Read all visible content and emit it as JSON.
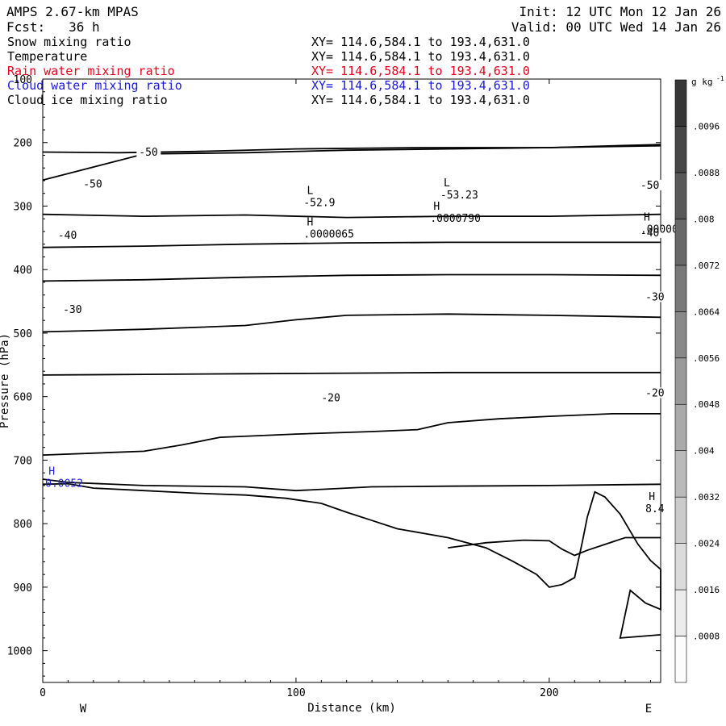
{
  "header": {
    "line1_left": "AMPS 2.67-km MPAS",
    "line1_right": "Init: 12 UTC Mon 12 Jan 26",
    "line2_left": "Fcst:   36 h",
    "line2_right": "Valid: 00 UTC Wed 14 Jan 26",
    "fields": [
      {
        "name": "Snow mixing ratio",
        "xy": "XY= 114.6,584.1 to 193.4,631.0",
        "color": "#000000"
      },
      {
        "name": "Temperature",
        "xy": "XY= 114.6,584.1 to 193.4,631.0",
        "color": "#000000"
      },
      {
        "name": "Rain water mixing ratio",
        "xy": "XY= 114.6,584.1 to 193.4,631.0",
        "color": "#e8001c"
      },
      {
        "name": "Cloud water mixing ratio",
        "xy": "XY= 114.6,584.1 to 193.4,631.0",
        "color": "#1a1adc"
      },
      {
        "name": "Cloud ice mixing ratio",
        "xy": "XY= 114.6,584.1 to 193.4,631.0",
        "color": "#000000"
      }
    ]
  },
  "chart_data": {
    "type": "cross-section contour",
    "xlabel": "Distance (km)",
    "ylabel": "Pressure (hPa)",
    "xlim": [
      0,
      244
    ],
    "ylim": [
      1050,
      100
    ],
    "x_ticks": [
      0,
      100,
      200
    ],
    "y_ticks": [
      100,
      200,
      300,
      400,
      500,
      600,
      700,
      800,
      900,
      1000
    ],
    "left_end_label": "W",
    "right_end_label": "E",
    "colorbar": {
      "unit": "g kg",
      "unit_exp": "-1",
      "levels": [
        ".0008",
        ".0016",
        ".0024",
        ".0032",
        ".004",
        ".0048",
        ".0056",
        ".0064",
        ".0072",
        ".008",
        ".0088",
        ".0096"
      ]
    },
    "temperature_isotherms": [
      {
        "points": [
          [
            0,
            215
          ],
          [
            30,
            216
          ],
          [
            60,
            214
          ],
          [
            100,
            210
          ],
          [
            150,
            208
          ],
          [
            200,
            208
          ],
          [
            244,
            205
          ]
        ]
      },
      {
        "label": "-50",
        "label_at": [
          38,
          218
        ],
        "points": [
          [
            0,
            259
          ],
          [
            40,
            218
          ],
          [
            80,
            216
          ],
          [
            120,
            212
          ],
          [
            160,
            210
          ],
          [
            200,
            208
          ],
          [
            244,
            203
          ]
        ]
      },
      {
        "label": "-50",
        "label_at": [
          16,
          268
        ],
        "points": [
          [
            0,
            313
          ],
          [
            40,
            316
          ],
          [
            80,
            314
          ],
          [
            120,
            318
          ],
          [
            160,
            316
          ],
          [
            200,
            316
          ],
          [
            244,
            313
          ]
        ]
      },
      {
        "label": "-50",
        "label_at": [
          236,
          270
        ],
        "points": []
      },
      {
        "points": [
          [
            0,
            365
          ],
          [
            40,
            363
          ],
          [
            80,
            360
          ],
          [
            120,
            358
          ],
          [
            160,
            357
          ],
          [
            200,
            357
          ],
          [
            244,
            357
          ]
        ]
      },
      {
        "label": "-40",
        "label_at": [
          6,
          349
        ],
        "points": [
          [
            0,
            418
          ],
          [
            40,
            416
          ],
          [
            80,
            412
          ],
          [
            120,
            409
          ],
          [
            160,
            408
          ],
          [
            200,
            408
          ],
          [
            244,
            409
          ]
        ]
      },
      {
        "label": "-40",
        "label_at": [
          236,
          345
        ],
        "points": []
      },
      {
        "points": [
          [
            0,
            498
          ],
          [
            40,
            494
          ],
          [
            80,
            488
          ],
          [
            100,
            479
          ],
          [
            120,
            472
          ],
          [
            160,
            470
          ],
          [
            200,
            472
          ],
          [
            244,
            475
          ]
        ]
      },
      {
        "label": "-30",
        "label_at": [
          8,
          466
        ],
        "points": [
          [
            0,
            566
          ],
          [
            40,
            565
          ],
          [
            80,
            564
          ],
          [
            120,
            563
          ],
          [
            160,
            562
          ],
          [
            200,
            562
          ],
          [
            244,
            562
          ]
        ]
      },
      {
        "label": "-30",
        "label_at": [
          238,
          446
        ],
        "points": []
      },
      {
        "points": [
          [
            0,
            692
          ],
          [
            40,
            686
          ],
          [
            55,
            676
          ],
          [
            70,
            664
          ],
          [
            100,
            659
          ],
          [
            130,
            655
          ],
          [
            148,
            652
          ],
          [
            160,
            641
          ],
          [
            180,
            635
          ],
          [
            200,
            631
          ],
          [
            225,
            627
          ],
          [
            244,
            627
          ]
        ]
      },
      {
        "label": "-20",
        "label_at": [
          110,
          605
        ],
        "points": [
          [
            0,
            730
          ],
          [
            10,
            735
          ],
          [
            40,
            740
          ],
          [
            80,
            742
          ],
          [
            100,
            748
          ],
          [
            115,
            745
          ],
          [
            130,
            742
          ],
          [
            160,
            741
          ],
          [
            200,
            740
          ],
          [
            244,
            738
          ]
        ]
      },
      {
        "label": "-20",
        "label_at": [
          238,
          597
        ],
        "points": []
      },
      {
        "points": [
          [
            160,
            838
          ],
          [
            175,
            830
          ],
          [
            190,
            826
          ],
          [
            200,
            827
          ],
          [
            205,
            840
          ],
          [
            210,
            850
          ],
          [
            215,
            842
          ],
          [
            230,
            822
          ],
          [
            244,
            822
          ]
        ]
      }
    ],
    "terrain_outline": {
      "points": [
        [
          0,
          738
        ],
        [
          10,
          737
        ],
        [
          20,
          744
        ],
        [
          40,
          748
        ],
        [
          60,
          752
        ],
        [
          80,
          755
        ],
        [
          96,
          760
        ],
        [
          110,
          768
        ],
        [
          120,
          782
        ],
        [
          130,
          795
        ],
        [
          140,
          808
        ],
        [
          160,
          822
        ],
        [
          175,
          838
        ],
        [
          185,
          858
        ],
        [
          195,
          880
        ],
        [
          200,
          900
        ],
        [
          205,
          896
        ],
        [
          210,
          885
        ],
        [
          213,
          830
        ],
        [
          215,
          790
        ],
        [
          218,
          750
        ],
        [
          222,
          758
        ],
        [
          228,
          785
        ],
        [
          235,
          832
        ],
        [
          240,
          858
        ],
        [
          244,
          872
        ],
        [
          244,
          935
        ],
        [
          238,
          925
        ],
        [
          232,
          905
        ],
        [
          228,
          980
        ],
        [
          244,
          975
        ]
      ]
    },
    "extrema": [
      {
        "kind": "L",
        "value": "-52.9",
        "at": [
          103,
          296
        ]
      },
      {
        "kind": "L",
        "value": "-53.23",
        "at": [
          157,
          284
        ]
      },
      {
        "kind": "H",
        "value": ".0000790",
        "at": [
          153,
          321
        ]
      },
      {
        "kind": "H",
        "value": ".0000065",
        "at": [
          103,
          346
        ]
      },
      {
        "kind": "H",
        "value": ".00000",
        "at": [
          236,
          338
        ]
      },
      {
        "kind": "H",
        "value": "8.4",
        "at": [
          238,
          778
        ]
      },
      {
        "kind": "H",
        "value": "0.0052",
        "at": [
          1,
          738
        ],
        "color": "#1a1adc"
      }
    ]
  }
}
